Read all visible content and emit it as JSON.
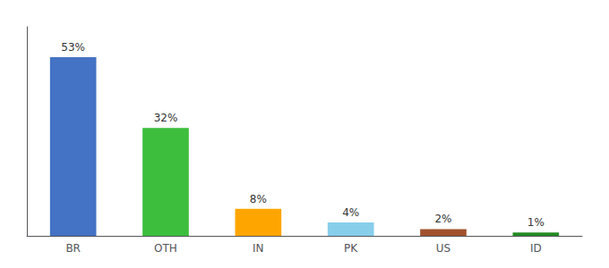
{
  "chart_data": {
    "type": "bar",
    "categories": [
      "BR",
      "OTH",
      "IN",
      "PK",
      "US",
      "ID"
    ],
    "values": [
      53,
      32,
      8,
      4,
      2,
      1
    ],
    "value_labels": [
      "53%",
      "32%",
      "8%",
      "4%",
      "2%",
      "1%"
    ],
    "colors": [
      "#4472C4",
      "#3DBE3D",
      "#FFA500",
      "#87CEEB",
      "#A0522D",
      "#228B22"
    ],
    "ylim": [
      0,
      62
    ],
    "data_labels": true,
    "tick_labels": "x",
    "grid": false
  }
}
